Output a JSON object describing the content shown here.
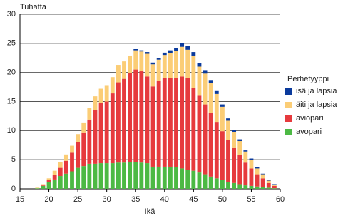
{
  "chart_data": {
    "type": "stacked-bar",
    "y_label": "Tuhatta",
    "x_label": "Ikä",
    "legend_title": "Perhetyyppi",
    "x": [
      18,
      19,
      20,
      21,
      22,
      23,
      24,
      25,
      26,
      27,
      28,
      29,
      30,
      31,
      32,
      33,
      34,
      35,
      36,
      37,
      38,
      39,
      40,
      41,
      42,
      43,
      44,
      45,
      46,
      47,
      48,
      49,
      50,
      51,
      52,
      53,
      54,
      55,
      56,
      57,
      58,
      59
    ],
    "series": [
      {
        "name": "isä ja lapsia",
        "color": "#0a3a9c",
        "values": [
          0,
          0,
          0,
          0,
          0,
          0,
          0,
          0,
          0,
          0,
          0,
          0,
          0,
          0,
          0,
          0,
          0,
          0.2,
          0.2,
          0.3,
          0.3,
          0.3,
          0.4,
          0.5,
          0.5,
          0.6,
          0.6,
          0.6,
          0.6,
          0.6,
          0.5,
          0.5,
          0.4,
          0.4,
          0.3,
          0.3,
          0.2,
          0.2,
          0.2,
          0.1,
          0.1,
          0.1
        ]
      },
      {
        "name": "äiti ja lapsia",
        "color": "#fbcd76",
        "values": [
          0.1,
          0.2,
          0.3,
          0.7,
          1.0,
          1.1,
          1.2,
          1.4,
          1.7,
          2.0,
          2.4,
          2.4,
          2.7,
          2.8,
          3.0,
          3.0,
          3.0,
          3.3,
          3.4,
          3.9,
          3.8,
          3.6,
          4.0,
          4.3,
          4.6,
          5.1,
          4.8,
          5.6,
          5.0,
          5.3,
          5.1,
          4.8,
          4.2,
          3.3,
          2.8,
          2.4,
          1.9,
          1.5,
          1.0,
          0.7,
          0.4,
          0.2
        ]
      },
      {
        "name": "aviopari",
        "color": "#e63a3d",
        "values": [
          0,
          0.1,
          0.3,
          0.8,
          1.4,
          2.2,
          3.2,
          4.4,
          5.8,
          7.6,
          9.2,
          10.4,
          10.6,
          12.0,
          13.8,
          14.4,
          15.3,
          15.9,
          15.7,
          14.9,
          13.8,
          14.8,
          15.2,
          15.2,
          15.4,
          15.8,
          15.8,
          14.2,
          13.2,
          12.0,
          11.0,
          9.7,
          8.4,
          7.2,
          6.0,
          5.0,
          3.9,
          3.0,
          2.1,
          1.5,
          0.8,
          0.4
        ]
      },
      {
        "name": "avopari",
        "color": "#4cb944",
        "values": [
          0.1,
          0.5,
          1.2,
          1.6,
          2.2,
          2.6,
          3.0,
          3.6,
          3.9,
          4.3,
          4.3,
          4.4,
          4.4,
          4.4,
          4.5,
          4.5,
          4.6,
          4.6,
          4.5,
          4.4,
          3.8,
          3.8,
          3.8,
          3.8,
          3.7,
          3.5,
          3.3,
          3.1,
          2.8,
          2.5,
          2.1,
          1.8,
          1.5,
          1.2,
          1.0,
          0.8,
          0.6,
          0.5,
          0.4,
          0.3,
          0.2,
          0.1
        ]
      }
    ],
    "xlim": [
      15,
      60
    ],
    "xticks": [
      15,
      20,
      25,
      30,
      35,
      40,
      45,
      50,
      55,
      60
    ],
    "ylim": [
      0,
      30
    ],
    "yticks": [
      0,
      5,
      10,
      15,
      20,
      25,
      30
    ],
    "grid": true,
    "legend": "right"
  }
}
